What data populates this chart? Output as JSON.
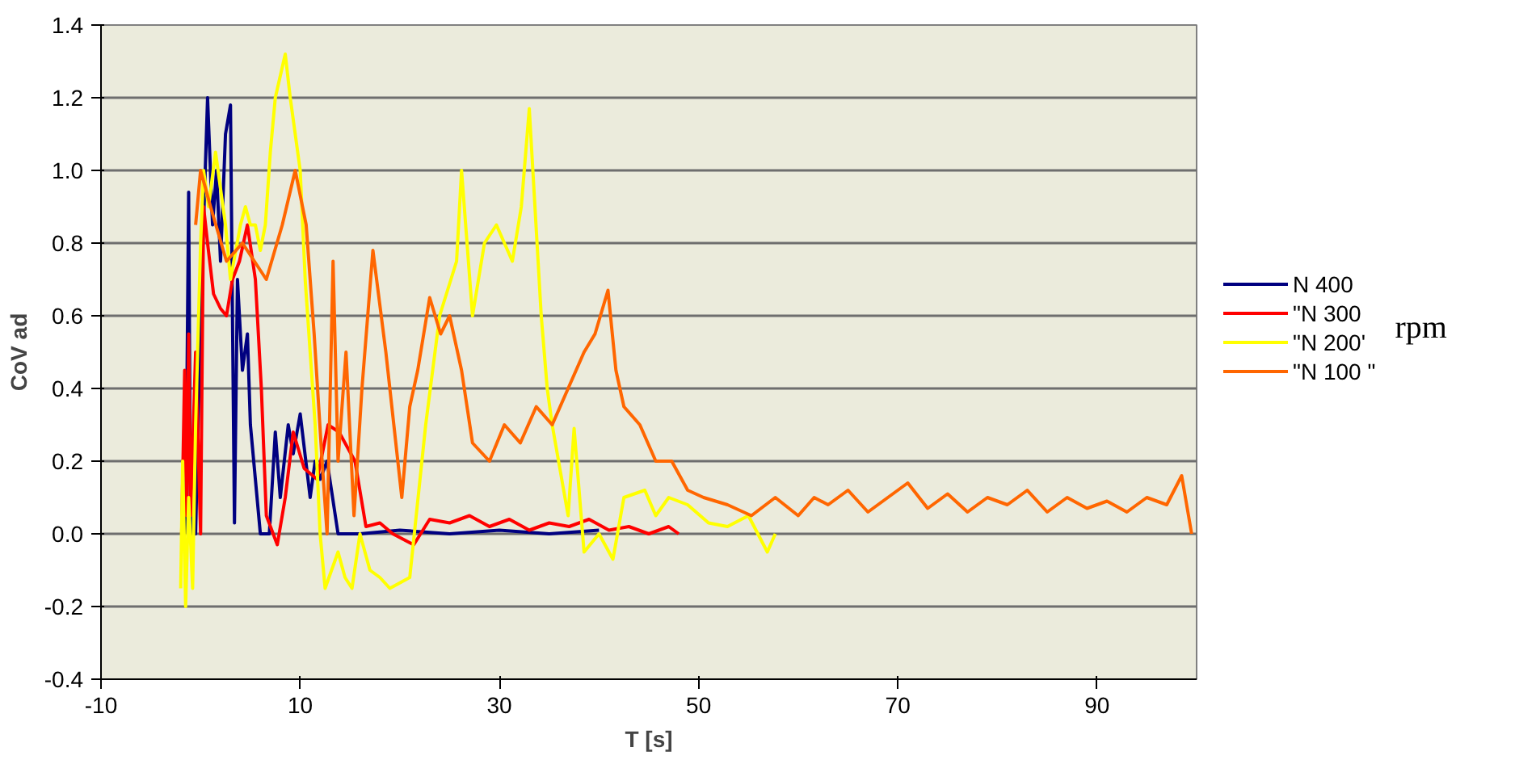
{
  "chart_data": {
    "type": "line",
    "xlabel": "T [s]",
    "ylabel": "CoV ad",
    "xlim": [
      -10,
      100
    ],
    "ylim": [
      -0.4,
      1.4
    ],
    "xticks": [
      -10,
      10,
      30,
      50,
      70,
      90
    ],
    "yticks": [
      {
        "value": -0.4,
        "label": "-0.4"
      },
      {
        "value": -0.2,
        "label": "-0.2"
      },
      {
        "value": 0,
        "label": "0.0"
      },
      {
        "value": 0.2,
        "label": "0.2"
      },
      {
        "value": 0.4,
        "label": "0.4"
      },
      {
        "value": 0.6,
        "label": "0.6"
      },
      {
        "value": 0.8,
        "label": "0.8"
      },
      {
        "value": 1.0,
        "label": "1.0"
      },
      {
        "value": 1.2,
        "label": "1.2"
      },
      {
        "value": 1.4,
        "label": "1.4"
      }
    ],
    "grid": "y",
    "legend": "right",
    "marker": "none",
    "line_style": "solid",
    "annotations": [
      "rpm"
    ],
    "series": [
      {
        "name": "N 400",
        "color": "#000080",
        "x": [
          -1.5,
          -1.2,
          -1.0,
          -0.5,
          0.0,
          0.7,
          1.2,
          1.6,
          2.0,
          2.5,
          3.0,
          3.2,
          3.4,
          3.7,
          4.2,
          4.7,
          5.0,
          5.5,
          6.0,
          6.9,
          7.5,
          8.0,
          8.8,
          9.3,
          10.0,
          11.0,
          11.5,
          12.0,
          12.7,
          13.8,
          16,
          20,
          25,
          30,
          35,
          40
        ],
        "values": [
          0.0,
          0.94,
          null,
          0.0,
          0.6,
          1.2,
          0.85,
          1.0,
          0.75,
          1.1,
          1.18,
          0.6,
          0.03,
          0.7,
          0.45,
          0.55,
          0.3,
          0.15,
          0.0,
          0.0,
          0.28,
          0.1,
          0.3,
          0.22,
          0.33,
          0.1,
          0.2,
          0.15,
          0.2,
          0.0,
          0.0,
          0.01,
          0.0,
          0.01,
          0.0,
          0.01
        ]
      },
      {
        "name": "\"N 300",
        "color": "#ff0000",
        "x": [
          -1.9,
          -1.6,
          -1.4,
          -1.2,
          -1.0,
          -0.5,
          0.0,
          0.3,
          0.7,
          1.3,
          2.0,
          2.6,
          3.2,
          3.9,
          4.7,
          5.5,
          6.1,
          6.6,
          7.7,
          8.5,
          9.3,
          10.4,
          11.7,
          12.8,
          13.9,
          15.5,
          16.6,
          18.0,
          19.3,
          21.4,
          23.0,
          25,
          27,
          29,
          31,
          33,
          35,
          37,
          39,
          41,
          43,
          45,
          47,
          48
        ],
        "values": [
          0.0,
          0.45,
          0.05,
          0.55,
          0.05,
          0.5,
          0.0,
          0.9,
          0.8,
          0.66,
          0.62,
          0.6,
          0.7,
          0.75,
          0.85,
          0.7,
          0.4,
          0.05,
          -0.03,
          0.1,
          0.28,
          0.18,
          0.15,
          0.3,
          0.28,
          0.2,
          0.02,
          0.03,
          0.0,
          -0.03,
          0.04,
          0.03,
          0.05,
          0.02,
          0.04,
          0.01,
          0.03,
          0.02,
          0.04,
          0.01,
          0.02,
          0.0,
          0.02,
          0.0
        ]
      },
      {
        "name": "\"N 200'",
        "color": "#ffff00",
        "x": [
          -2.0,
          -1.8,
          -1.5,
          -1.2,
          -0.8,
          -0.5,
          0.0,
          0.3,
          0.8,
          1.5,
          2.0,
          2.5,
          3.0,
          4.0,
          4.5,
          5.0,
          5.5,
          6.0,
          6.5,
          7.0,
          7.5,
          8.5,
          9.0,
          10.0,
          10.5,
          11.0,
          11.5,
          12.0,
          12.5,
          13.8,
          14.5,
          15.2,
          16.0,
          17.0,
          18.0,
          19.0,
          21.0,
          22.6,
          24.0,
          25.7,
          26.2,
          27.3,
          28.5,
          29.7,
          31.3,
          32.2,
          33.0,
          34.2,
          34.8,
          35.3,
          36.9,
          37.5,
          38.5,
          40.0,
          41.4,
          42.5,
          44.6,
          45.7,
          47.0,
          48.9,
          51.0,
          52.9,
          55.0,
          56.9,
          57.7
        ],
        "values": [
          -0.15,
          0.2,
          -0.2,
          0.1,
          -0.15,
          0.3,
          0.8,
          1.0,
          0.9,
          1.05,
          0.95,
          0.85,
          0.7,
          0.85,
          0.9,
          0.85,
          0.85,
          0.78,
          0.85,
          1.05,
          1.2,
          1.32,
          1.2,
          1.0,
          0.7,
          0.5,
          0.3,
          0.0,
          -0.15,
          -0.05,
          -0.12,
          -0.15,
          0.0,
          -0.1,
          -0.12,
          -0.15,
          -0.12,
          0.3,
          0.6,
          0.75,
          1.0,
          0.6,
          0.8,
          0.85,
          0.75,
          0.9,
          1.17,
          0.6,
          0.4,
          0.3,
          0.05,
          0.29,
          -0.05,
          0.0,
          -0.07,
          0.1,
          0.12,
          0.05,
          0.1,
          0.08,
          0.03,
          0.02,
          0.05,
          -0.05,
          0.0
        ]
      },
      {
        "name": "\"N 100 \"",
        "color": "#ff6600",
        "x": [
          -0.5,
          0.0,
          1.0,
          2.6,
          4.2,
          6.6,
          8.2,
          9.5,
          10.6,
          11.4,
          12.2,
          12.7,
          13.3,
          13.8,
          14.6,
          15.4,
          16.2,
          17.3,
          18.6,
          19.4,
          20.2,
          21.0,
          21.8,
          23.0,
          24.1,
          25.0,
          26.2,
          27.3,
          29.0,
          30.5,
          32.1,
          33.7,
          35.3,
          36.9,
          38.5,
          39.6,
          40.9,
          41.7,
          42.5,
          44.1,
          45.7,
          47.3,
          48.9,
          50.5,
          52.9,
          55.3,
          57.7,
          60.0,
          61.6,
          63,
          65,
          67,
          69,
          71,
          73,
          75,
          77,
          79,
          81,
          83,
          85,
          87,
          89,
          91,
          93,
          95,
          97,
          98.5,
          99.5
        ],
        "values": [
          0.85,
          1.0,
          0.9,
          0.75,
          0.8,
          0.7,
          0.85,
          1.0,
          0.85,
          0.55,
          0.2,
          0.0,
          0.75,
          0.2,
          0.5,
          0.05,
          0.4,
          0.78,
          0.5,
          0.3,
          0.1,
          0.35,
          0.45,
          0.65,
          0.55,
          0.6,
          0.45,
          0.25,
          0.2,
          0.3,
          0.25,
          0.35,
          0.3,
          0.4,
          0.5,
          0.55,
          0.67,
          0.45,
          0.35,
          0.3,
          0.2,
          0.2,
          0.12,
          0.1,
          0.08,
          0.05,
          0.1,
          0.05,
          0.1,
          0.08,
          0.12,
          0.06,
          0.1,
          0.14,
          0.07,
          0.11,
          0.06,
          0.1,
          0.08,
          0.12,
          0.06,
          0.1,
          0.07,
          0.09,
          0.06,
          0.1,
          0.08,
          0.16,
          0.0
        ]
      }
    ]
  }
}
